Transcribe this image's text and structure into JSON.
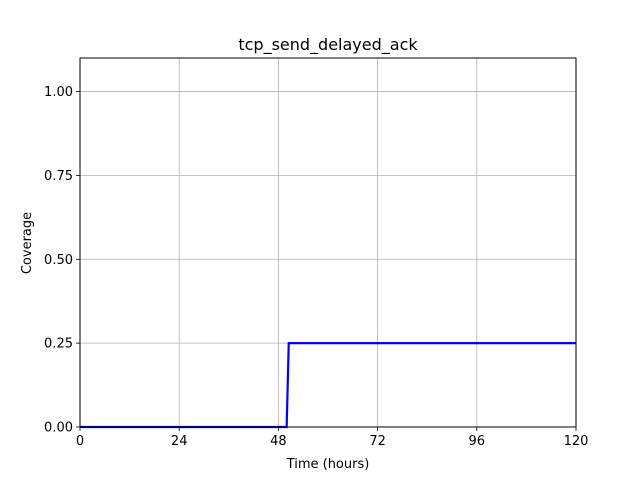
{
  "chart_data": {
    "type": "line",
    "title": "tcp_send_delayed_ack",
    "xlabel": "Time (hours)",
    "ylabel": "Coverage",
    "xlim": [
      0,
      120
    ],
    "ylim": [
      0,
      1.1
    ],
    "xticks": [
      0,
      24,
      48,
      72,
      96,
      120
    ],
    "xtick_labels": [
      "0",
      "24",
      "48",
      "72",
      "96",
      "120"
    ],
    "yticks": [
      0.0,
      0.25,
      0.5,
      0.75,
      1.0
    ],
    "ytick_labels": [
      "0.00",
      "0.25",
      "0.50",
      "0.75",
      "1.00"
    ],
    "grid": true,
    "series": [
      {
        "name": "coverage",
        "color": "#0000ff",
        "x": [
          0,
          50,
          50.5,
          120
        ],
        "y": [
          0,
          0,
          0.25,
          0.25
        ]
      }
    ]
  }
}
